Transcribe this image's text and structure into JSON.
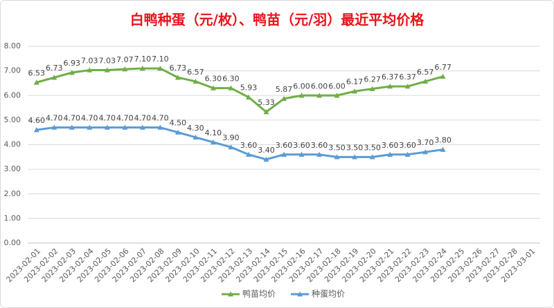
{
  "chart_data": {
    "type": "line",
    "title": "白鸭种蛋（元/枚）、鸭苗（元/羽）最近平均价格",
    "categories": [
      "2023-02-01",
      "2023-02-02",
      "2023-02-03",
      "2023-02-04",
      "2023-02-05",
      "2023-02-06",
      "2023-02-07",
      "2023-02-08",
      "2023-02-09",
      "2023-02-10",
      "2023-02-11",
      "2023-02-12",
      "2023-02-13",
      "2023-02-14",
      "2023-02-15",
      "2023-02-16",
      "2023-02-17",
      "2023-02-18",
      "2023-02-19",
      "2023-02-20",
      "2023-02-21",
      "2023-02-22",
      "2023-02-23",
      "2023-02-24",
      "2023-02-25",
      "2023-02-26",
      "2023-02-27",
      "2023-02-28",
      "2023-03-01"
    ],
    "series": [
      {
        "name": "鸭苗均价",
        "color": "#70ad47",
        "values": [
          6.53,
          6.73,
          6.93,
          7.03,
          7.03,
          7.07,
          7.1,
          7.1,
          6.73,
          6.57,
          6.3,
          6.3,
          5.93,
          5.33,
          5.87,
          6.0,
          6.0,
          6.0,
          6.17,
          6.27,
          6.37,
          6.37,
          6.57,
          6.77,
          null,
          null,
          null,
          null,
          null
        ],
        "value_labels": [
          "6.53",
          "6.73",
          "6.93",
          "7.03",
          "7.03",
          "7.07",
          "7.10",
          "7.10",
          "6.73",
          "6.57",
          "6.30",
          "6.30",
          "5.93",
          "5.33",
          "5.87",
          "6.00",
          "6.00",
          "6.00",
          "6.17",
          "6.27",
          "6.37",
          "6.37",
          "6.57",
          "6.77",
          null,
          null,
          null,
          null,
          null
        ]
      },
      {
        "name": "种蛋均价",
        "color": "#5b9bd5",
        "values": [
          4.6,
          4.7,
          4.7,
          4.7,
          4.7,
          4.7,
          4.7,
          4.7,
          4.5,
          4.3,
          4.1,
          3.9,
          3.6,
          3.4,
          3.6,
          3.6,
          3.6,
          3.5,
          3.5,
          3.5,
          3.6,
          3.6,
          3.7,
          3.8,
          null,
          null,
          null,
          null,
          null
        ],
        "value_labels": [
          "4.60",
          "4.70",
          "4.70",
          "4.70",
          "4.70",
          "4.70",
          "4.70",
          "4.70",
          "4.50",
          "4.30",
          "4.10",
          "3.90",
          "3.60",
          "3.40",
          "3.60",
          "3.60",
          "3.60",
          "3.50",
          "3.50",
          "3.50",
          "3.60",
          "3.60",
          "3.70",
          "3.80",
          null,
          null,
          null,
          null,
          null
        ]
      }
    ],
    "ylim": [
      0,
      8
    ],
    "yticks": [
      {
        "value": 0,
        "label": "0.00"
      },
      {
        "value": 1,
        "label": "1.00"
      },
      {
        "value": 2,
        "label": "2.00"
      },
      {
        "value": 3,
        "label": "3.00"
      },
      {
        "value": 4,
        "label": "4.00"
      },
      {
        "value": 5,
        "label": "5.00"
      },
      {
        "value": 6,
        "label": "6.00"
      },
      {
        "value": 7,
        "label": "7.00"
      },
      {
        "value": 8,
        "label": "8.00"
      }
    ],
    "grid": true,
    "legend": "bottom"
  }
}
